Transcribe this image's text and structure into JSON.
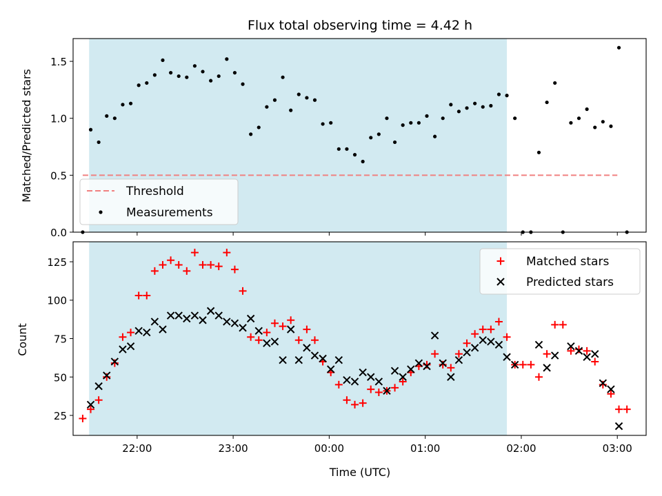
{
  "chart_data": [
    {
      "type": "scatter",
      "title": "Flux total observing time = 4.42 h",
      "ylabel": "Matched/Predicted stars",
      "xlim": [
        "21:20",
        "03:18"
      ],
      "ylim": [
        0,
        1.7
      ],
      "yticks": [
        {
          "value": 0.0,
          "label": "0.0"
        },
        {
          "value": 0.5,
          "label": "0.5"
        },
        {
          "value": 1.0,
          "label": "1.0"
        },
        {
          "value": 1.5,
          "label": "1.5"
        }
      ],
      "shaded_span": {
        "start": "21:30",
        "end": "01:51",
        "color": "#add8e6"
      },
      "threshold": {
        "name": "Threshold",
        "value": 0.5,
        "from": "21:26",
        "to": "03:00",
        "color": "#f08080"
      },
      "legend": {
        "placement": "lower-left",
        "entries": [
          "Threshold",
          "Measurements"
        ]
      },
      "series": [
        {
          "name": "Measurements",
          "color": "#000000",
          "marker": "dot",
          "points": [
            [
              "21:26",
              0.0
            ],
            [
              "21:31",
              0.9
            ],
            [
              "21:36",
              0.79
            ],
            [
              "21:41",
              1.02
            ],
            [
              "21:46",
              1.0
            ],
            [
              "21:51",
              1.12
            ],
            [
              "21:56",
              1.13
            ],
            [
              "22:01",
              1.29
            ],
            [
              "22:06",
              1.31
            ],
            [
              "22:11",
              1.38
            ],
            [
              "22:16",
              1.51
            ],
            [
              "22:21",
              1.4
            ],
            [
              "22:26",
              1.37
            ],
            [
              "22:31",
              1.36
            ],
            [
              "22:36",
              1.46
            ],
            [
              "22:41",
              1.41
            ],
            [
              "22:46",
              1.33
            ],
            [
              "22:51",
              1.37
            ],
            [
              "22:56",
              1.52
            ],
            [
              "23:01",
              1.4
            ],
            [
              "23:06",
              1.3
            ],
            [
              "23:11",
              0.86
            ],
            [
              "23:16",
              0.92
            ],
            [
              "23:21",
              1.1
            ],
            [
              "23:26",
              1.16
            ],
            [
              "23:31",
              1.36
            ],
            [
              "23:36",
              1.07
            ],
            [
              "23:41",
              1.21
            ],
            [
              "23:46",
              1.18
            ],
            [
              "23:51",
              1.16
            ],
            [
              "23:56",
              0.95
            ],
            [
              "00:01",
              0.96
            ],
            [
              "00:06",
              0.73
            ],
            [
              "00:11",
              0.73
            ],
            [
              "00:16",
              0.68
            ],
            [
              "00:21",
              0.62
            ],
            [
              "00:26",
              0.83
            ],
            [
              "00:31",
              0.86
            ],
            [
              "00:36",
              1.0
            ],
            [
              "00:41",
              0.79
            ],
            [
              "00:46",
              0.94
            ],
            [
              "00:51",
              0.96
            ],
            [
              "00:56",
              0.96
            ],
            [
              "01:01",
              1.02
            ],
            [
              "01:06",
              0.84
            ],
            [
              "01:11",
              1.0
            ],
            [
              "01:16",
              1.12
            ],
            [
              "01:21",
              1.06
            ],
            [
              "01:26",
              1.09
            ],
            [
              "01:31",
              1.13
            ],
            [
              "01:36",
              1.1
            ],
            [
              "01:41",
              1.11
            ],
            [
              "01:46",
              1.21
            ],
            [
              "01:51",
              1.2
            ],
            [
              "01:56",
              1.0
            ],
            [
              "02:01",
              0.0
            ],
            [
              "02:06",
              0.0
            ],
            [
              "02:11",
              0.7
            ],
            [
              "02:16",
              1.14
            ],
            [
              "02:21",
              1.31
            ],
            [
              "02:26",
              0.0
            ],
            [
              "02:31",
              0.96
            ],
            [
              "02:36",
              1.0
            ],
            [
              "02:41",
              1.08
            ],
            [
              "02:46",
              0.92
            ],
            [
              "02:51",
              0.97
            ],
            [
              "02:56",
              0.93
            ],
            [
              "03:01",
              1.62
            ],
            [
              "03:06",
              0.0
            ]
          ]
        }
      ]
    },
    {
      "type": "scatter",
      "xlabel": "Time (UTC)",
      "ylabel": "Count",
      "xlim": [
        "21:20",
        "03:18"
      ],
      "ylim": [
        12,
        138
      ],
      "xticks": [
        "22:00",
        "23:00",
        "00:00",
        "01:00",
        "02:00",
        "03:00"
      ],
      "yticks": [
        {
          "value": 25,
          "label": "25"
        },
        {
          "value": 50,
          "label": "50"
        },
        {
          "value": 75,
          "label": "75"
        },
        {
          "value": 100,
          "label": "100"
        },
        {
          "value": 125,
          "label": "125"
        }
      ],
      "shaded_span": {
        "start": "21:30",
        "end": "01:51",
        "color": "#add8e6"
      },
      "legend": {
        "placement": "top-right",
        "entries": [
          "Matched stars",
          "Predicted stars"
        ]
      },
      "series": [
        {
          "name": "Matched stars",
          "color": "#ff0000",
          "marker": "plus",
          "points": [
            [
              "21:26",
              23
            ],
            [
              "21:31",
              29
            ],
            [
              "21:36",
              35
            ],
            [
              "21:41",
              50
            ],
            [
              "21:46",
              59
            ],
            [
              "21:51",
              76
            ],
            [
              "21:56",
              79
            ],
            [
              "22:01",
              103
            ],
            [
              "22:06",
              103
            ],
            [
              "22:11",
              119
            ],
            [
              "22:16",
              123
            ],
            [
              "22:21",
              126
            ],
            [
              "22:26",
              123
            ],
            [
              "22:31",
              119
            ],
            [
              "22:36",
              131
            ],
            [
              "22:41",
              123
            ],
            [
              "22:46",
              123
            ],
            [
              "22:51",
              122
            ],
            [
              "22:56",
              131
            ],
            [
              "23:01",
              120
            ],
            [
              "23:06",
              106
            ],
            [
              "23:11",
              76
            ],
            [
              "23:16",
              74
            ],
            [
              "23:21",
              79
            ],
            [
              "23:26",
              85
            ],
            [
              "23:31",
              83
            ],
            [
              "23:36",
              87
            ],
            [
              "23:41",
              74
            ],
            [
              "23:46",
              81
            ],
            [
              "23:51",
              74
            ],
            [
              "23:56",
              60
            ],
            [
              "00:01",
              53
            ],
            [
              "00:06",
              45
            ],
            [
              "00:11",
              35
            ],
            [
              "00:16",
              32
            ],
            [
              "00:21",
              33
            ],
            [
              "00:26",
              42
            ],
            [
              "00:31",
              40
            ],
            [
              "00:36",
              41
            ],
            [
              "00:41",
              43
            ],
            [
              "00:46",
              47
            ],
            [
              "00:51",
              53
            ],
            [
              "00:56",
              57
            ],
            [
              "01:01",
              58
            ],
            [
              "01:06",
              65
            ],
            [
              "01:11",
              58
            ],
            [
              "01:16",
              56
            ],
            [
              "01:21",
              65
            ],
            [
              "01:26",
              72
            ],
            [
              "01:31",
              78
            ],
            [
              "01:36",
              81
            ],
            [
              "01:41",
              81
            ],
            [
              "01:46",
              86
            ],
            [
              "01:51",
              76
            ],
            [
              "01:56",
              58
            ],
            [
              "02:01",
              58
            ],
            [
              "02:06",
              58
            ],
            [
              "02:11",
              50
            ],
            [
              "02:16",
              65
            ],
            [
              "02:21",
              84
            ],
            [
              "02:26",
              84
            ],
            [
              "02:31",
              67
            ],
            [
              "02:36",
              68
            ],
            [
              "02:41",
              67
            ],
            [
              "02:46",
              60
            ],
            [
              "02:51",
              45
            ],
            [
              "02:56",
              39
            ],
            [
              "03:01",
              29
            ],
            [
              "03:06",
              29
            ]
          ]
        },
        {
          "name": "Predicted stars",
          "color": "#000000",
          "marker": "x",
          "points": [
            [
              "21:31",
              32
            ],
            [
              "21:36",
              44
            ],
            [
              "21:41",
              51
            ],
            [
              "21:46",
              60
            ],
            [
              "21:51",
              68
            ],
            [
              "21:56",
              70
            ],
            [
              "22:01",
              80
            ],
            [
              "22:06",
              79
            ],
            [
              "22:11",
              86
            ],
            [
              "22:16",
              81
            ],
            [
              "22:21",
              90
            ],
            [
              "22:26",
              90
            ],
            [
              "22:31",
              88
            ],
            [
              "22:36",
              90
            ],
            [
              "22:41",
              87
            ],
            [
              "22:46",
              93
            ],
            [
              "22:51",
              90
            ],
            [
              "22:56",
              86
            ],
            [
              "23:01",
              85
            ],
            [
              "23:06",
              82
            ],
            [
              "23:11",
              88
            ],
            [
              "23:16",
              80
            ],
            [
              "23:21",
              72
            ],
            [
              "23:26",
              73
            ],
            [
              "23:31",
              61
            ],
            [
              "23:36",
              81
            ],
            [
              "23:41",
              61
            ],
            [
              "23:46",
              69
            ],
            [
              "23:51",
              64
            ],
            [
              "23:56",
              62
            ],
            [
              "00:01",
              55
            ],
            [
              "00:06",
              61
            ],
            [
              "00:11",
              48
            ],
            [
              "00:16",
              47
            ],
            [
              "00:21",
              53
            ],
            [
              "00:26",
              50
            ],
            [
              "00:31",
              47
            ],
            [
              "00:36",
              41
            ],
            [
              "00:41",
              54
            ],
            [
              "00:46",
              50
            ],
            [
              "00:51",
              55
            ],
            [
              "00:56",
              59
            ],
            [
              "01:01",
              57
            ],
            [
              "01:06",
              77
            ],
            [
              "01:11",
              59
            ],
            [
              "01:16",
              50
            ],
            [
              "01:21",
              61
            ],
            [
              "01:26",
              66
            ],
            [
              "01:31",
              69
            ],
            [
              "01:36",
              74
            ],
            [
              "01:41",
              73
            ],
            [
              "01:46",
              71
            ],
            [
              "01:51",
              63
            ],
            [
              "01:56",
              58
            ],
            [
              "02:11",
              71
            ],
            [
              "02:16",
              56
            ],
            [
              "02:21",
              64
            ],
            [
              "02:31",
              70
            ],
            [
              "02:36",
              67
            ],
            [
              "02:41",
              63
            ],
            [
              "02:46",
              65
            ],
            [
              "02:51",
              46
            ],
            [
              "02:56",
              42
            ],
            [
              "03:01",
              18
            ]
          ]
        }
      ]
    }
  ]
}
